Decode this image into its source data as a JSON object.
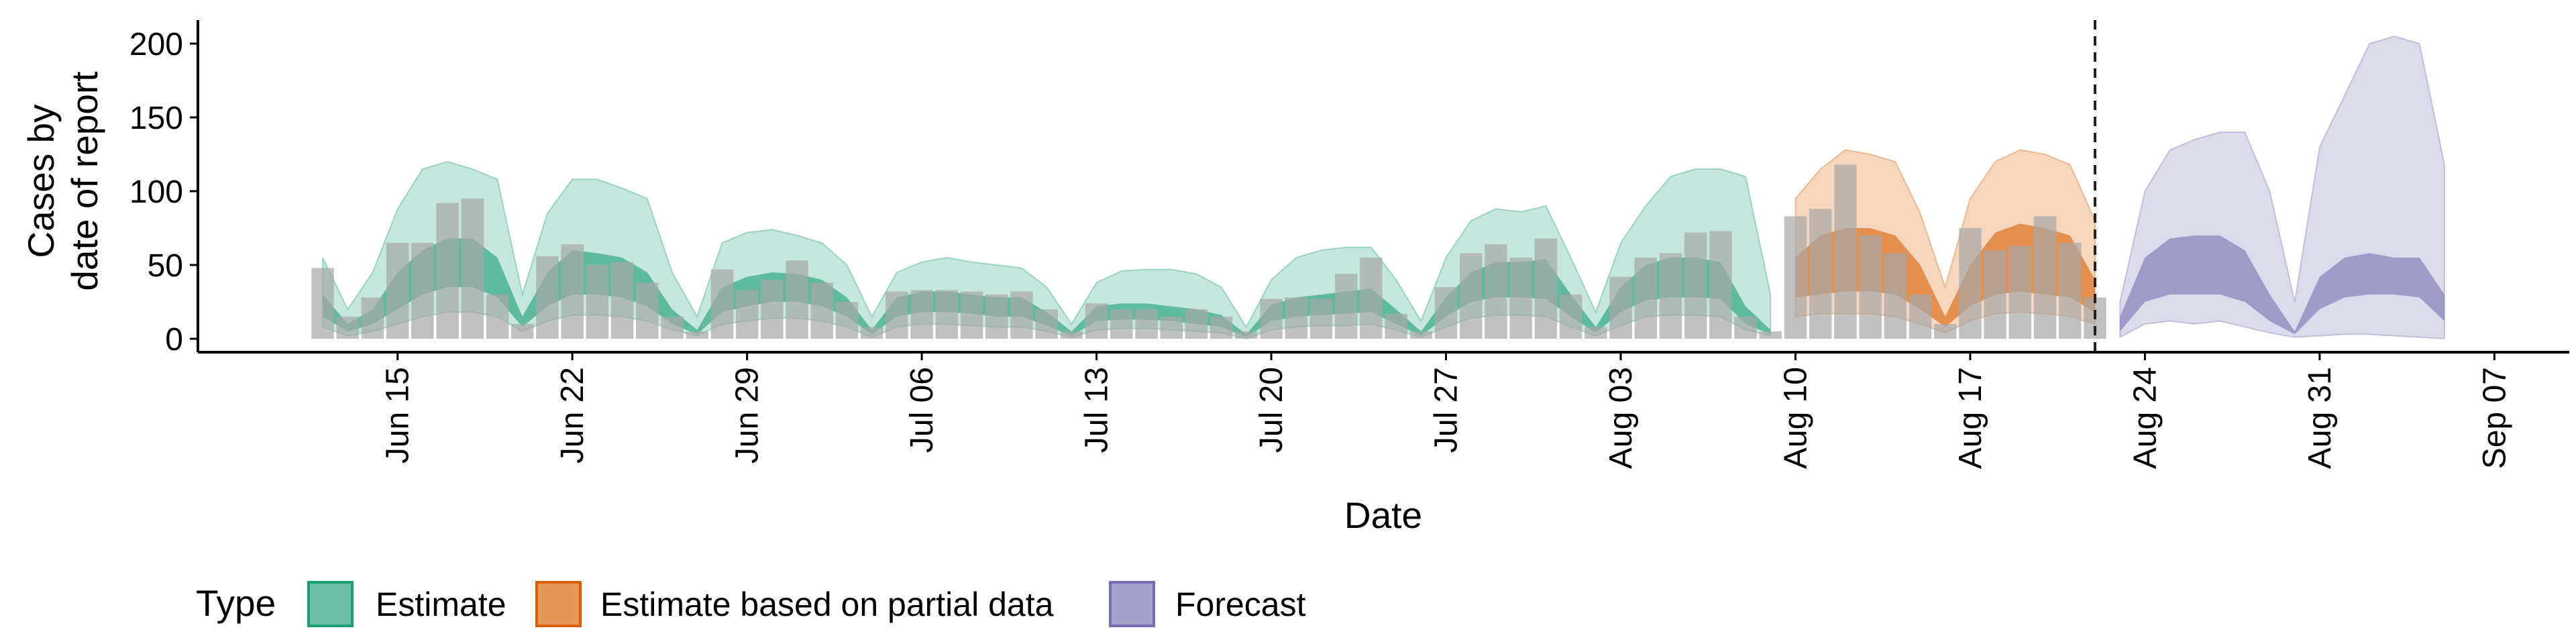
{
  "chart_data": {
    "type": "area",
    "title": "",
    "xlabel": "Date",
    "ylabel": [
      "Cases by",
      "date of report"
    ],
    "ylim": [
      0,
      215
    ],
    "xlim": [
      "2020-06-07",
      "2020-09-10"
    ],
    "yticks": [
      0,
      50,
      100,
      150,
      200
    ],
    "xticks": [
      {
        "date": "2020-06-15",
        "label": "Jun 15"
      },
      {
        "date": "2020-06-22",
        "label": "Jun 22"
      },
      {
        "date": "2020-06-29",
        "label": "Jun 29"
      },
      {
        "date": "2020-07-06",
        "label": "Jul 06"
      },
      {
        "date": "2020-07-13",
        "label": "Jul 13"
      },
      {
        "date": "2020-07-20",
        "label": "Jul 20"
      },
      {
        "date": "2020-07-27",
        "label": "Jul 27"
      },
      {
        "date": "2020-08-03",
        "label": "Aug 03"
      },
      {
        "date": "2020-08-10",
        "label": "Aug 10"
      },
      {
        "date": "2020-08-17",
        "label": "Aug 17"
      },
      {
        "date": "2020-08-24",
        "label": "Aug 24"
      },
      {
        "date": "2020-08-31",
        "label": "Aug 31"
      },
      {
        "date": "2020-09-07",
        "label": "Sep 07"
      }
    ],
    "grid": false,
    "legend_position": "bottom-left",
    "legend_title": "Type",
    "vline_date": "2020-08-22",
    "bar_color": "#a6a6a6",
    "observed_dates": [
      "2020-06-12",
      "2020-06-13",
      "2020-06-14",
      "2020-06-15",
      "2020-06-16",
      "2020-06-17",
      "2020-06-18",
      "2020-06-19",
      "2020-06-20",
      "2020-06-21",
      "2020-06-22",
      "2020-06-23",
      "2020-06-24",
      "2020-06-25",
      "2020-06-26",
      "2020-06-27",
      "2020-06-28",
      "2020-06-29",
      "2020-06-30",
      "2020-07-01",
      "2020-07-02",
      "2020-07-03",
      "2020-07-04",
      "2020-07-05",
      "2020-07-06",
      "2020-07-07",
      "2020-07-08",
      "2020-07-09",
      "2020-07-10",
      "2020-07-11",
      "2020-07-12",
      "2020-07-13",
      "2020-07-14",
      "2020-07-15",
      "2020-07-16",
      "2020-07-17",
      "2020-07-18",
      "2020-07-19",
      "2020-07-20",
      "2020-07-21",
      "2020-07-22",
      "2020-07-23",
      "2020-07-24",
      "2020-07-25",
      "2020-07-26",
      "2020-07-27",
      "2020-07-28",
      "2020-07-29",
      "2020-07-30",
      "2020-07-31",
      "2020-08-01",
      "2020-08-02",
      "2020-08-03",
      "2020-08-04",
      "2020-08-05",
      "2020-08-06",
      "2020-08-07",
      "2020-08-08",
      "2020-08-09",
      "2020-08-10",
      "2020-08-11",
      "2020-08-12",
      "2020-08-13",
      "2020-08-14",
      "2020-08-15",
      "2020-08-16",
      "2020-08-17",
      "2020-08-18",
      "2020-08-19",
      "2020-08-20",
      "2020-08-21",
      "2020-08-22"
    ],
    "observed_values": [
      48,
      15,
      28,
      65,
      65,
      92,
      95,
      30,
      10,
      56,
      64,
      50,
      52,
      38,
      15,
      5,
      47,
      33,
      40,
      53,
      38,
      25,
      8,
      32,
      33,
      33,
      32,
      30,
      32,
      20,
      5,
      24,
      20,
      20,
      15,
      20,
      15,
      5,
      27,
      28,
      27,
      44,
      55,
      17,
      5,
      35,
      58,
      64,
      55,
      68,
      30,
      8,
      42,
      55,
      58,
      72,
      73,
      15,
      5,
      83,
      88,
      118,
      70,
      58,
      30,
      10,
      75,
      60,
      63,
      83,
      65,
      28
    ],
    "series": [
      {
        "name": "Estimate",
        "color": "#1b9e77",
        "dates": [
          "2020-06-12",
          "2020-06-13",
          "2020-06-14",
          "2020-06-15",
          "2020-06-16",
          "2020-06-17",
          "2020-06-18",
          "2020-06-19",
          "2020-06-20",
          "2020-06-21",
          "2020-06-22",
          "2020-06-23",
          "2020-06-24",
          "2020-06-25",
          "2020-06-26",
          "2020-06-27",
          "2020-06-28",
          "2020-06-29",
          "2020-06-30",
          "2020-07-01",
          "2020-07-02",
          "2020-07-03",
          "2020-07-04",
          "2020-07-05",
          "2020-07-06",
          "2020-07-07",
          "2020-07-08",
          "2020-07-09",
          "2020-07-10",
          "2020-07-11",
          "2020-07-12",
          "2020-07-13",
          "2020-07-14",
          "2020-07-15",
          "2020-07-16",
          "2020-07-17",
          "2020-07-18",
          "2020-07-19",
          "2020-07-20",
          "2020-07-21",
          "2020-07-22",
          "2020-07-23",
          "2020-07-24",
          "2020-07-25",
          "2020-07-26",
          "2020-07-27",
          "2020-07-28",
          "2020-07-29",
          "2020-07-30",
          "2020-07-31",
          "2020-08-01",
          "2020-08-02",
          "2020-08-03",
          "2020-08-04",
          "2020-08-05",
          "2020-08-06",
          "2020-08-07",
          "2020-08-08",
          "2020-08-09"
        ],
        "outer_low": [
          8,
          2,
          5,
          10,
          15,
          18,
          18,
          15,
          5,
          12,
          16,
          16,
          15,
          12,
          6,
          2,
          10,
          12,
          14,
          14,
          12,
          8,
          1,
          8,
          10,
          10,
          9,
          8,
          8,
          5,
          1,
          6,
          7,
          7,
          6,
          5,
          4,
          0,
          6,
          8,
          9,
          9,
          10,
          6,
          1,
          8,
          14,
          16,
          16,
          15,
          8,
          2,
          9,
          15,
          16,
          16,
          15,
          6,
          2
        ],
        "inner_low": [
          15,
          5,
          10,
          20,
          30,
          35,
          35,
          28,
          8,
          22,
          30,
          30,
          28,
          22,
          10,
          3,
          18,
          22,
          25,
          25,
          22,
          15,
          3,
          15,
          18,
          18,
          17,
          15,
          15,
          9,
          2,
          12,
          13,
          13,
          12,
          10,
          8,
          1,
          12,
          15,
          16,
          17,
          18,
          10,
          2,
          15,
          25,
          28,
          28,
          27,
          15,
          4,
          18,
          26,
          28,
          28,
          27,
          10,
          3
        ],
        "inner_high": [
          30,
          10,
          20,
          45,
          60,
          68,
          68,
          55,
          15,
          45,
          60,
          58,
          55,
          45,
          20,
          6,
          35,
          42,
          45,
          44,
          40,
          28,
          6,
          28,
          32,
          32,
          30,
          28,
          28,
          18,
          5,
          22,
          24,
          24,
          22,
          20,
          16,
          3,
          23,
          28,
          30,
          32,
          34,
          20,
          5,
          28,
          45,
          52,
          52,
          54,
          30,
          8,
          35,
          50,
          55,
          55,
          52,
          22,
          6
        ],
        "outer_high": [
          55,
          20,
          45,
          88,
          115,
          120,
          115,
          108,
          30,
          85,
          108,
          108,
          102,
          95,
          45,
          15,
          65,
          72,
          74,
          70,
          65,
          50,
          15,
          45,
          52,
          55,
          52,
          50,
          48,
          35,
          10,
          38,
          46,
          47,
          47,
          44,
          35,
          8,
          40,
          55,
          60,
          62,
          62,
          40,
          12,
          55,
          80,
          88,
          86,
          90,
          55,
          18,
          65,
          90,
          110,
          115,
          115,
          110,
          30
        ]
      },
      {
        "name": "Estimate based on partial data",
        "color": "#d95f02",
        "dates": [
          "2020-08-10",
          "2020-08-11",
          "2020-08-12",
          "2020-08-13",
          "2020-08-14",
          "2020-08-15",
          "2020-08-16",
          "2020-08-17",
          "2020-08-18",
          "2020-08-19",
          "2020-08-20",
          "2020-08-21",
          "2020-08-22"
        ],
        "outer_low": [
          15,
          17,
          17,
          17,
          15,
          10,
          4,
          12,
          17,
          18,
          17,
          15,
          10
        ],
        "inner_low": [
          28,
          30,
          32,
          32,
          30,
          20,
          8,
          22,
          30,
          32,
          30,
          28,
          18
        ],
        "inner_high": [
          55,
          70,
          75,
          75,
          70,
          50,
          15,
          50,
          72,
          78,
          75,
          70,
          40
        ],
        "outer_high": [
          95,
          115,
          128,
          125,
          120,
          85,
          35,
          95,
          120,
          128,
          125,
          118,
          80
        ]
      },
      {
        "name": "Forecast",
        "color": "#7570b3",
        "dates": [
          "2020-08-23",
          "2020-08-24",
          "2020-08-25",
          "2020-08-26",
          "2020-08-27",
          "2020-08-28",
          "2020-08-29",
          "2020-08-30",
          "2020-08-31",
          "2020-09-01",
          "2020-09-02",
          "2020-09-03",
          "2020-09-04",
          "2020-09-05"
        ],
        "outer_low": [
          1,
          10,
          12,
          10,
          12,
          8,
          4,
          1,
          2,
          3,
          3,
          2,
          1,
          0
        ],
        "inner_low": [
          5,
          25,
          30,
          30,
          30,
          25,
          12,
          3,
          20,
          28,
          30,
          30,
          28,
          12
        ],
        "inner_high": [
          15,
          55,
          68,
          70,
          70,
          60,
          30,
          5,
          42,
          55,
          58,
          55,
          55,
          30
        ],
        "outer_high": [
          25,
          100,
          128,
          135,
          140,
          140,
          100,
          25,
          130,
          165,
          200,
          205,
          200,
          118
        ]
      }
    ]
  }
}
